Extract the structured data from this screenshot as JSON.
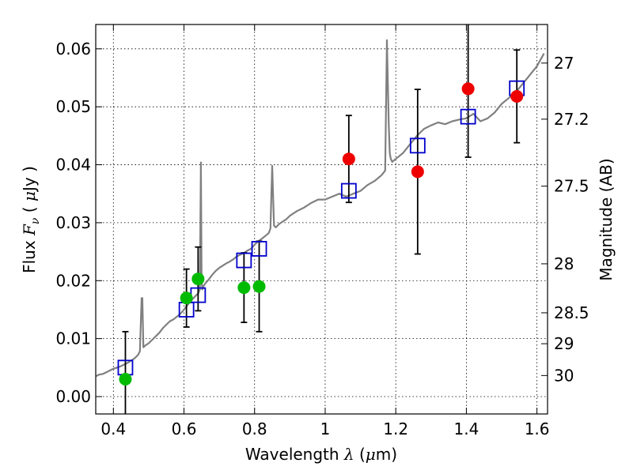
{
  "chart_data": {
    "type": "scatter",
    "xlabel": {
      "prefix": "Wavelength  ",
      "symbol": "λ",
      "mid": " (",
      "unit_symbol": "μ",
      "unit": "m)"
    },
    "ylabel": {
      "prefix": "Flux  ",
      "symbol": "F",
      "subscript": "ν",
      "mid": "  (  ",
      "unit_symbol": "μ",
      "unit": "Jy )"
    },
    "y2label": "Magnitude (AB)",
    "xlim": [
      0.35,
      1.63
    ],
    "ylim": [
      -0.003,
      0.0642
    ],
    "grid": true,
    "x_ticks": [
      {
        "v": 0.4,
        "label": "0.4"
      },
      {
        "v": 0.6,
        "label": "0.6"
      },
      {
        "v": 0.8,
        "label": "0.8"
      },
      {
        "v": 1.0,
        "label": "1"
      },
      {
        "v": 1.2,
        "label": "1.2"
      },
      {
        "v": 1.4,
        "label": "1.4"
      },
      {
        "v": 1.6,
        "label": "1.6"
      }
    ],
    "y_ticks": [
      {
        "v": 0.0,
        "label": "0.00"
      },
      {
        "v": 0.01,
        "label": "0.01"
      },
      {
        "v": 0.02,
        "label": "0.02"
      },
      {
        "v": 0.03,
        "label": "0.03"
      },
      {
        "v": 0.04,
        "label": "0.04"
      },
      {
        "v": 0.05,
        "label": "0.05"
      },
      {
        "v": 0.06,
        "label": "0.06"
      }
    ],
    "y2_ticks": [
      {
        "mag": 27,
        "label": "27"
      },
      {
        "mag": 27.2,
        "label": "27.2"
      },
      {
        "mag": 27.5,
        "label": "27.5"
      },
      {
        "mag": 28,
        "label": "28"
      },
      {
        "mag": 28.5,
        "label": "28.5"
      },
      {
        "mag": 29,
        "label": "29"
      },
      {
        "mag": 30,
        "label": "30"
      }
    ],
    "colors": {
      "template": "#808080",
      "model": "#0000cc",
      "green": "#00bb00",
      "red": "#ee0000",
      "errorbar": "#000000",
      "grid": "#000000"
    },
    "series": [
      {
        "style": "template-line",
        "x": [
          0.35,
          0.36,
          0.37,
          0.38,
          0.39,
          0.4,
          0.41,
          0.42,
          0.43,
          0.44,
          0.45,
          0.46,
          0.47,
          0.475,
          0.48,
          0.482,
          0.485,
          0.49,
          0.5,
          0.51,
          0.52,
          0.53,
          0.54,
          0.55,
          0.56,
          0.57,
          0.58,
          0.59,
          0.6,
          0.61,
          0.62,
          0.63,
          0.64,
          0.645,
          0.648,
          0.65,
          0.652,
          0.655,
          0.66,
          0.67,
          0.68,
          0.69,
          0.7,
          0.71,
          0.72,
          0.73,
          0.74,
          0.75,
          0.76,
          0.77,
          0.78,
          0.79,
          0.8,
          0.81,
          0.82,
          0.83,
          0.84,
          0.845,
          0.85,
          0.855,
          0.86,
          0.87,
          0.88,
          0.89,
          0.9,
          0.92,
          0.94,
          0.96,
          0.98,
          1.0,
          1.02,
          1.04,
          1.06,
          1.08,
          1.1,
          1.12,
          1.14,
          1.16,
          1.17,
          1.175,
          1.18,
          1.183,
          1.186,
          1.19,
          1.2,
          1.22,
          1.24,
          1.26,
          1.28,
          1.3,
          1.32,
          1.34,
          1.36,
          1.38,
          1.4,
          1.42,
          1.44,
          1.46,
          1.48,
          1.5,
          1.52,
          1.54,
          1.56,
          1.58,
          1.6,
          1.62
        ],
        "y": [
          0.0035,
          0.0038,
          0.0039,
          0.0042,
          0.0045,
          0.0048,
          0.005,
          0.0052,
          0.0055,
          0.0058,
          0.0062,
          0.0066,
          0.0072,
          0.0078,
          0.017,
          0.017,
          0.0085,
          0.0088,
          0.0092,
          0.0098,
          0.0104,
          0.011,
          0.0118,
          0.0124,
          0.013,
          0.0133,
          0.0138,
          0.0143,
          0.015,
          0.0158,
          0.0165,
          0.0172,
          0.0178,
          0.0185,
          0.0404,
          0.02,
          0.0185,
          0.019,
          0.0195,
          0.0202,
          0.021,
          0.0217,
          0.0222,
          0.0226,
          0.023,
          0.0233,
          0.0237,
          0.0242,
          0.0245,
          0.0248,
          0.0252,
          0.0255,
          0.0262,
          0.0268,
          0.0272,
          0.0277,
          0.0282,
          0.029,
          0.0398,
          0.0295,
          0.0292,
          0.0298,
          0.0302,
          0.0306,
          0.0312,
          0.032,
          0.0326,
          0.0334,
          0.034,
          0.034,
          0.0345,
          0.035,
          0.0345,
          0.035,
          0.0355,
          0.0365,
          0.0372,
          0.0382,
          0.039,
          0.0615,
          0.047,
          0.042,
          0.041,
          0.0405,
          0.041,
          0.042,
          0.0435,
          0.045,
          0.0462,
          0.0468,
          0.0473,
          0.047,
          0.0475,
          0.0478,
          0.048,
          0.0488,
          0.0475,
          0.048,
          0.049,
          0.0505,
          0.0515,
          0.0525,
          0.054,
          0.0555,
          0.057,
          0.0592
        ]
      },
      {
        "style": "model-squares",
        "x": [
          0.434,
          0.607,
          0.64,
          0.77,
          0.813,
          1.067,
          1.262,
          1.405,
          1.543
        ],
        "y": [
          0.005,
          0.015,
          0.0175,
          0.0235,
          0.0255,
          0.0355,
          0.0433,
          0.0483,
          0.0532
        ]
      },
      {
        "style": "green-dots",
        "x": [
          0.434,
          0.607,
          0.64,
          0.77,
          0.813
        ],
        "y": [
          0.003,
          0.017,
          0.0203,
          0.0188,
          0.019
        ],
        "err": [
          0.0082,
          0.005,
          0.0055,
          0.006,
          0.0078
        ]
      },
      {
        "style": "red-dots",
        "x": [
          1.067,
          1.262,
          1.405,
          1.543
        ],
        "y": [
          0.041,
          0.0388,
          0.0531,
          0.0518
        ],
        "err": [
          0.0075,
          0.0142,
          0.0118,
          0.008
        ]
      }
    ]
  }
}
